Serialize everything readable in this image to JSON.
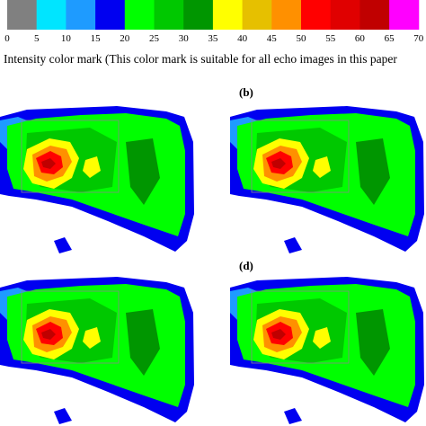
{
  "colorbar": {
    "colors": [
      "#808080",
      "#00e5ff",
      "#1e9bff",
      "#0000f0",
      "#00ff00",
      "#00c800",
      "#009600",
      "#ffff00",
      "#e6c000",
      "#ff9000",
      "#ff0000",
      "#e00000",
      "#c00000",
      "#ff00ff"
    ],
    "ticks": [
      "0",
      "5",
      "10",
      "15",
      "20",
      "25",
      "30",
      "35",
      "40",
      "45",
      "50",
      "55",
      "60",
      "65",
      "70"
    ]
  },
  "caption": "Intensity color mark (This color mark is suitable for all echo images in this paper",
  "panels": [
    {
      "label": "(b)"
    },
    {
      "label": "(d)"
    }
  ]
}
